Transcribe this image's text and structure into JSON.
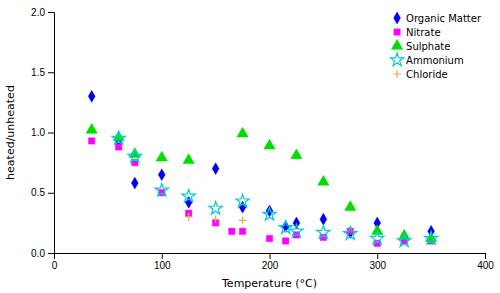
{
  "chart_data": {
    "type": "scatter",
    "xlabel": "Temperature (°C)",
    "ylabel": "heated/unheated",
    "xlim": [
      0,
      400
    ],
    "ylim": [
      0.0,
      2.0
    ],
    "xticks": [
      0,
      100,
      200,
      300,
      400
    ],
    "yticks": [
      {
        "value": 0.0,
        "label": "0.0"
      },
      {
        "value": 0.5,
        "label": "0.5"
      },
      {
        "value": 1.0,
        "label": "1.0"
      },
      {
        "value": 1.5,
        "label": "1.5"
      },
      {
        "value": 2.0,
        "label": "2.0"
      }
    ],
    "legend": "upper right",
    "series": [
      {
        "name": "Organic Matter",
        "color": "#0000EE",
        "marker": "diamond",
        "x": [
          35,
          60,
          75,
          100,
          125,
          150,
          175,
          200,
          215,
          225,
          250,
          275,
          300,
          325,
          350
        ],
        "values": [
          1.3,
          0.92,
          0.58,
          0.65,
          0.42,
          0.7,
          0.38,
          0.35,
          0.22,
          0.25,
          0.28,
          0.17,
          0.25,
          0.14,
          0.18
        ]
      },
      {
        "name": "Nitrate",
        "color": "#FF00FF",
        "marker": "square",
        "x": [
          35,
          60,
          75,
          100,
          125,
          150,
          165,
          175,
          200,
          215,
          225,
          250,
          275,
          300,
          325,
          350
        ],
        "values": [
          0.93,
          0.88,
          0.75,
          0.5,
          0.33,
          0.25,
          0.18,
          0.18,
          0.12,
          0.1,
          0.15,
          0.13,
          0.18,
          0.08,
          0.1,
          0.1
        ]
      },
      {
        "name": "Sulphate",
        "color": "#00DD00",
        "marker": "triangle",
        "x": [
          35,
          60,
          75,
          100,
          125,
          175,
          200,
          225,
          250,
          275,
          300,
          325,
          350
        ],
        "values": [
          1.02,
          0.96,
          0.82,
          0.79,
          0.77,
          0.99,
          0.89,
          0.81,
          0.59,
          0.38,
          0.18,
          0.14,
          0.12
        ]
      },
      {
        "name": "Ammonium",
        "color": "#00CCDD",
        "marker": "star",
        "x": [
          60,
          75,
          100,
          125,
          150,
          175,
          200,
          215,
          225,
          250,
          275,
          300,
          325,
          350
        ],
        "values": [
          0.95,
          0.8,
          0.52,
          0.47,
          0.37,
          0.43,
          0.32,
          0.21,
          0.18,
          0.17,
          0.16,
          0.12,
          0.1,
          0.12
        ]
      },
      {
        "name": "Chloride",
        "color": "#DDAA55",
        "marker": "plus",
        "x": [
          125,
          150,
          175
        ],
        "values": [
          0.3,
          0.28,
          0.27
        ]
      }
    ]
  }
}
